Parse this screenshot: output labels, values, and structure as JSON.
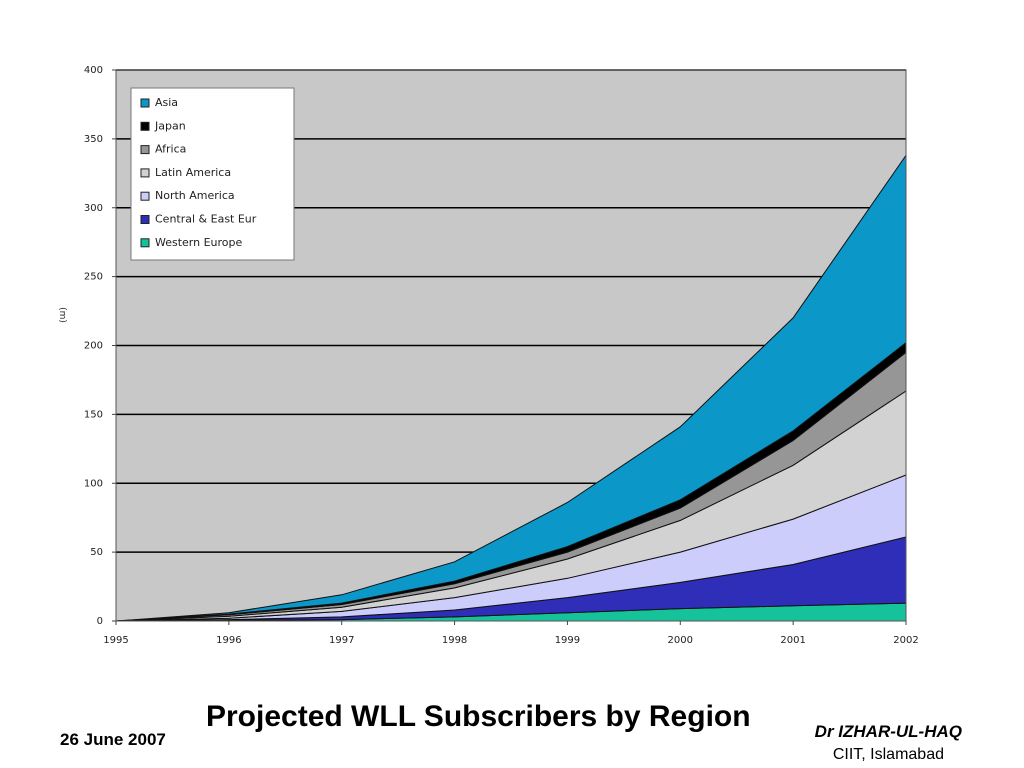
{
  "slide": {
    "title": "Projected WLL Subscribers by Region",
    "date": "26 June 2007",
    "author": "Dr IZHAR-UL-HAQ",
    "affiliation": "CIIT, Islamabad"
  },
  "colors": {
    "plot_background": "#c8c8c8",
    "grid": "#000000"
  },
  "chart_data": {
    "type": "area",
    "stacked": true,
    "x": [
      1995,
      1996,
      1997,
      1998,
      1999,
      2000,
      2001,
      2002
    ],
    "xlabel": "",
    "ylabel": "(m)",
    "ylim": [
      0,
      400
    ],
    "yticks": [
      0,
      50,
      100,
      150,
      200,
      250,
      300,
      350,
      400
    ],
    "grid": true,
    "legend_position": "top-left",
    "series": [
      {
        "name": "Western Europe",
        "color": "#16c29a",
        "values": [
          0,
          0.5,
          1,
          3,
          6,
          9,
          11,
          13
        ]
      },
      {
        "name": "Central & East Eur",
        "color": "#2e2eb8",
        "values": [
          0,
          0.5,
          2,
          5,
          11,
          19,
          30,
          48
        ]
      },
      {
        "name": "North America",
        "color": "#cccdfb",
        "values": [
          0,
          1,
          4,
          9,
          14,
          22,
          33,
          45
        ]
      },
      {
        "name": "Latin America",
        "color": "#d2d2d2",
        "values": [
          0,
          1.5,
          3,
          7,
          14,
          23,
          39,
          61
        ]
      },
      {
        "name": "Africa",
        "color": "#969696",
        "values": [
          0,
          1,
          2,
          3,
          5,
          9,
          18,
          28
        ]
      },
      {
        "name": "Japan",
        "color": "#000000",
        "values": [
          0,
          0.5,
          1,
          2,
          4,
          6,
          7,
          7
        ]
      },
      {
        "name": "Asia",
        "color": "#0b97c8",
        "values": [
          0,
          1,
          6,
          14,
          32,
          53,
          82,
          136
        ]
      }
    ],
    "legend_order": [
      "Asia",
      "Japan",
      "Africa",
      "Latin America",
      "North America",
      "Central & East Eur",
      "Western Europe"
    ]
  }
}
